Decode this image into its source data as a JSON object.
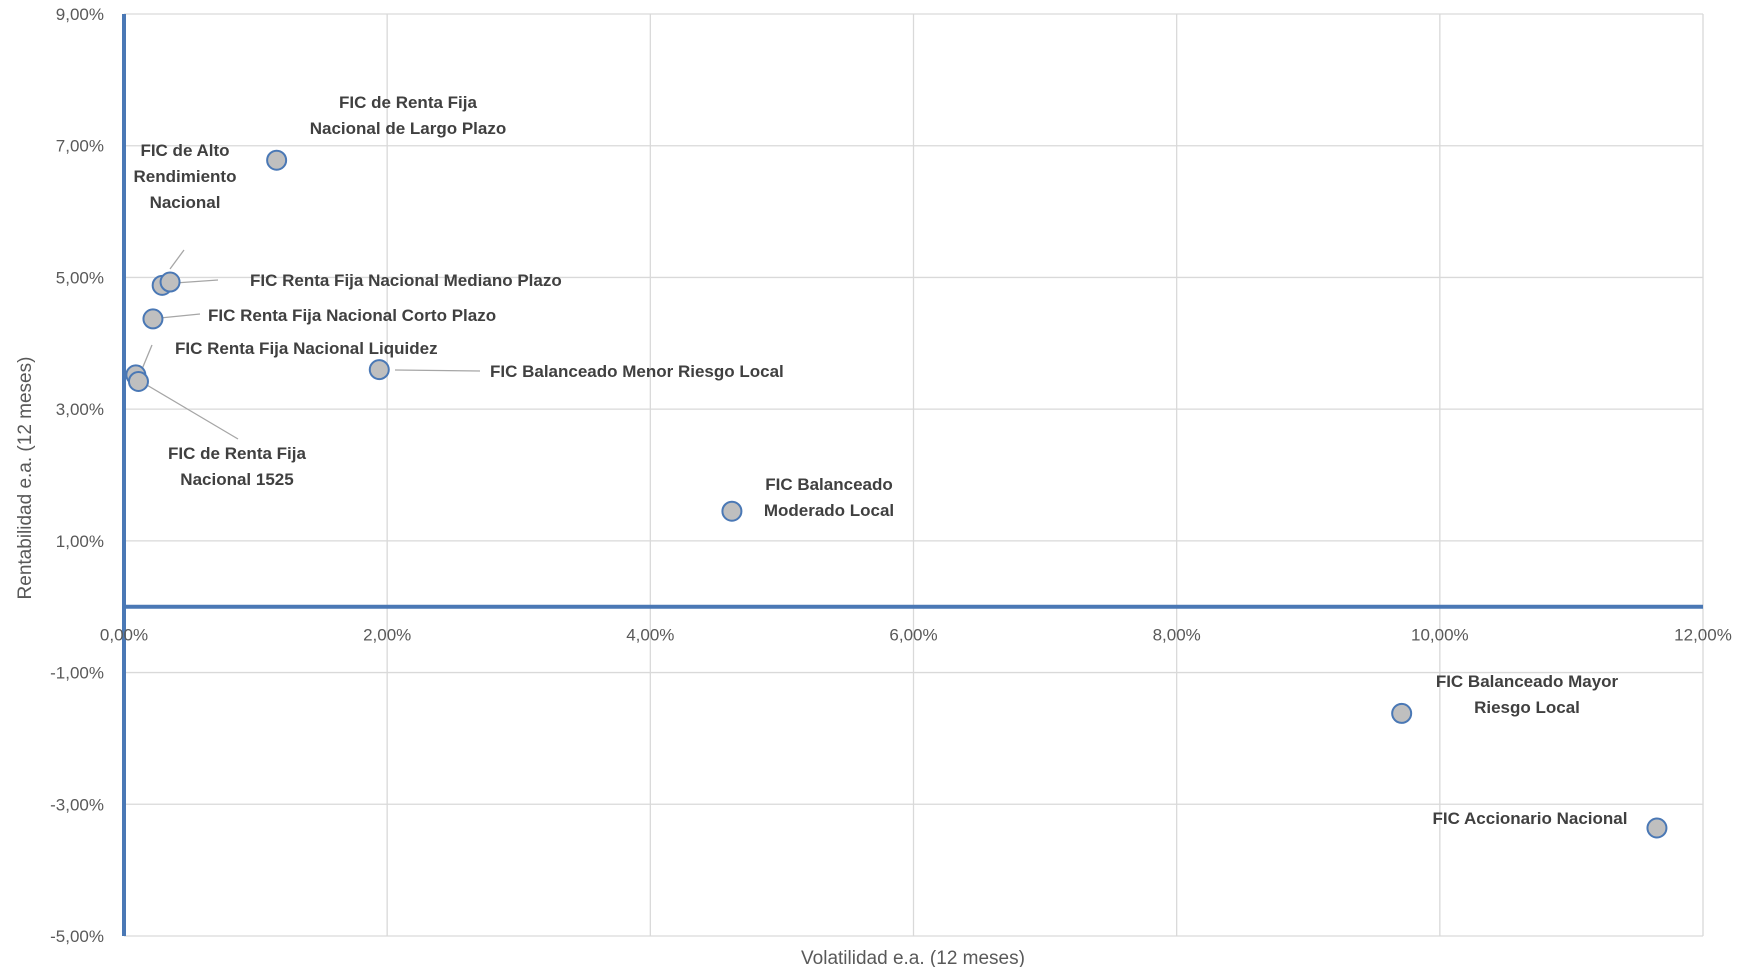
{
  "chart_data": {
    "type": "scatter",
    "xlabel": "Volatilidad e.a. (12 meses)",
    "ylabel": "Rentabilidad e.a. (12 meses)",
    "xlim": [
      0,
      12
    ],
    "ylim": [
      -5,
      9
    ],
    "x_ticks": [
      0,
      2,
      4,
      6,
      8,
      10,
      12
    ],
    "y_ticks": [
      -5,
      -3,
      -1,
      1,
      3,
      5,
      7,
      9
    ],
    "x_tick_labels": [
      "0,00%",
      "2,00%",
      "4,00%",
      "6,00%",
      "8,00%",
      "10,00%",
      "12,00%"
    ],
    "y_tick_labels": [
      "-5,00%",
      "-3,00%",
      "-1,00%",
      "1,00%",
      "3,00%",
      "5,00%",
      "7,00%",
      "9,00%"
    ],
    "grid": true,
    "marker_fill": "#bfbfbf",
    "marker_stroke": "#4a78b5",
    "axis_line_color": "#4a78b5",
    "points": [
      {
        "label_lines": [
          "FIC de Renta Fija",
          "Nacional de Largo Plazo"
        ],
        "x": 1.16,
        "y": 6.78
      },
      {
        "label_lines": [
          "FIC de Alto",
          "Rendimiento",
          "Nacional"
        ],
        "x": 0.29,
        "y": 4.88
      },
      {
        "label_lines": [
          "FIC Renta Fija Nacional Mediano  Plazo"
        ],
        "x": 0.35,
        "y": 4.93
      },
      {
        "label_lines": [
          "FIC Renta Fija Nacional Corto  Plazo"
        ],
        "x": 0.22,
        "y": 4.37
      },
      {
        "label_lines": [
          "FIC Renta Fija Nacional Liquidez"
        ],
        "x": 0.09,
        "y": 3.52
      },
      {
        "label_lines": [
          "FIC de Renta Fija",
          "Nacional 1525"
        ],
        "x": 0.11,
        "y": 3.42
      },
      {
        "label_lines": [
          "FIC Balanceado Menor  Riesgo Local"
        ],
        "x": 1.94,
        "y": 3.6
      },
      {
        "label_lines": [
          "FIC Balanceado",
          "Moderado  Local"
        ],
        "x": 4.62,
        "y": 1.45
      },
      {
        "label_lines": [
          "FIC Balanceado Mayor",
          "Riesgo Local"
        ],
        "x": 9.71,
        "y": -1.62
      },
      {
        "label_lines": [
          "FIC Accionario  Nacional"
        ],
        "x": 11.65,
        "y": -3.36
      }
    ]
  }
}
